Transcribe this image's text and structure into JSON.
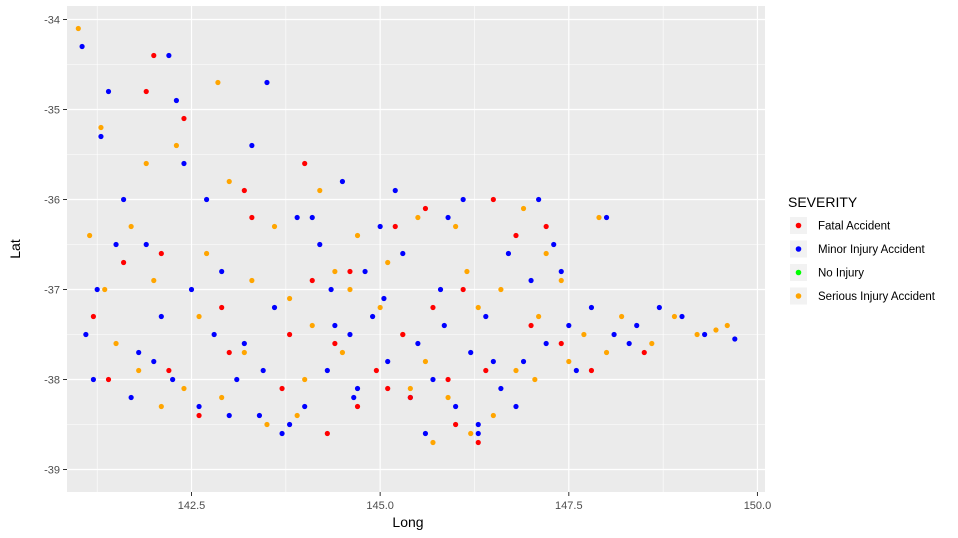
{
  "chart_data": {
    "type": "scatter",
    "title": "",
    "xlabel": "Long",
    "ylabel": "Lat",
    "xlim": [
      140.85,
      150.1
    ],
    "ylim": [
      -39.25,
      -33.85
    ],
    "x_ticks": [
      142.5,
      145.0,
      147.5,
      150.0
    ],
    "x_tick_labels": [
      "142.5",
      "145.0",
      "147.5",
      "150.0"
    ],
    "y_ticks": [
      -39,
      -38,
      -37,
      -36,
      -35,
      -34
    ],
    "y_tick_labels": [
      "-39",
      "-38",
      "-37",
      "-36",
      "-35",
      "-34"
    ],
    "grid": true,
    "legend": {
      "title": "SEVERITY",
      "position": "right",
      "entries": [
        {
          "label": "Fatal Accident",
          "color": "#FF0000"
        },
        {
          "label": "Minor Injury Accident",
          "color": "#0000FF"
        },
        {
          "label": "No Injury",
          "color": "#00FF00"
        },
        {
          "label": "Serious Injury Accident",
          "color": "#FFA500"
        }
      ]
    },
    "series": [
      {
        "name": "Fatal Accident",
        "color": "#FF0000",
        "x": [
          141.2,
          141.6,
          142.1,
          142.4,
          142.9,
          143.3,
          143.7,
          144.1,
          144.4,
          144.7,
          144.95,
          145.2,
          145.4,
          145.7,
          146.0,
          146.3,
          146.5,
          147.0,
          147.4,
          147.8,
          142.0,
          143.0,
          144.0,
          145.1,
          146.1,
          141.4,
          142.6,
          143.8,
          144.6,
          145.6,
          146.4,
          147.2,
          148.5,
          143.2,
          144.3,
          145.9,
          141.9,
          142.2,
          145.3,
          146.8
        ],
        "y": [
          -37.3,
          -36.7,
          -36.6,
          -35.1,
          -37.2,
          -36.2,
          -38.1,
          -36.9,
          -37.6,
          -38.3,
          -37.9,
          -36.3,
          -38.2,
          -37.2,
          -38.5,
          -38.7,
          -36.0,
          -37.4,
          -37.6,
          -37.9,
          -34.4,
          -37.7,
          -35.6,
          -38.1,
          -37.0,
          -38.0,
          -38.4,
          -37.5,
          -36.8,
          -36.1,
          -37.9,
          -36.3,
          -37.7,
          -35.9,
          -38.6,
          -38.0,
          -34.8,
          -37.9,
          -37.5,
          -36.4
        ]
      },
      {
        "name": "Minor Injury Accident",
        "color": "#0000FF",
        "x": [
          141.05,
          141.3,
          141.6,
          141.9,
          142.2,
          142.5,
          142.8,
          143.1,
          143.4,
          143.7,
          144.0,
          144.3,
          144.6,
          144.9,
          145.1,
          145.4,
          145.7,
          146.0,
          146.3,
          146.6,
          146.9,
          147.2,
          147.5,
          147.8,
          148.1,
          148.4,
          148.7,
          149.0,
          149.3,
          149.7,
          141.2,
          142.0,
          142.9,
          143.6,
          144.2,
          144.8,
          145.3,
          145.8,
          146.4,
          147.0,
          141.5,
          142.4,
          143.3,
          144.5,
          145.0,
          145.9,
          146.7,
          147.3,
          141.8,
          142.7,
          143.9,
          144.4,
          145.5,
          146.2,
          147.6,
          148.0,
          141.1,
          143.0,
          144.7,
          146.5,
          141.4,
          142.3,
          143.5,
          144.1,
          145.2,
          146.1,
          147.1,
          148.3,
          141.7,
          142.6,
          143.8,
          145.6,
          146.8,
          141.25,
          142.1,
          143.2,
          144.35,
          145.05,
          145.85,
          147.4,
          142.25,
          143.45,
          144.65,
          146.3
        ],
        "y": [
          -34.3,
          -35.3,
          -36.0,
          -36.5,
          -34.4,
          -37.0,
          -37.5,
          -38.0,
          -38.4,
          -38.6,
          -38.3,
          -37.9,
          -37.5,
          -37.3,
          -37.8,
          -38.2,
          -38.0,
          -38.3,
          -38.5,
          -38.1,
          -37.8,
          -37.6,
          -37.4,
          -37.2,
          -37.5,
          -37.4,
          -37.2,
          -37.3,
          -37.5,
          -37.55,
          -38.0,
          -37.8,
          -36.8,
          -37.2,
          -36.5,
          -36.8,
          -36.6,
          -37.0,
          -37.3,
          -36.9,
          -36.5,
          -35.6,
          -35.4,
          -35.8,
          -36.3,
          -36.2,
          -36.6,
          -36.5,
          -37.7,
          -36.0,
          -36.2,
          -37.4,
          -37.6,
          -37.7,
          -37.9,
          -36.2,
          -37.5,
          -38.4,
          -38.1,
          -37.8,
          -34.8,
          -34.9,
          -34.7,
          -36.2,
          -35.9,
          -36.0,
          -36.0,
          -37.6,
          -38.2,
          -38.3,
          -38.5,
          -38.6,
          -38.3,
          -37.0,
          -37.3,
          -37.6,
          -37.0,
          -37.1,
          -37.4,
          -36.8,
          -38.0,
          -37.9,
          -38.2,
          -38.6
        ]
      },
      {
        "name": "No Injury",
        "color": "#00FF00",
        "x": [],
        "y": []
      },
      {
        "name": "Serious Injury Accident",
        "color": "#FFA500",
        "x": [
          141.0,
          141.3,
          141.7,
          142.0,
          142.3,
          142.6,
          142.9,
          143.2,
          143.5,
          143.8,
          144.1,
          144.4,
          144.7,
          145.0,
          145.3,
          145.6,
          145.9,
          146.2,
          146.5,
          146.8,
          147.1,
          147.4,
          147.7,
          148.0,
          148.6,
          149.2,
          149.6,
          141.15,
          141.8,
          142.7,
          143.6,
          144.5,
          145.4,
          146.3,
          147.2,
          148.2,
          141.5,
          142.4,
          143.3,
          144.2,
          145.1,
          146.0,
          146.9,
          147.9,
          141.9,
          143.0,
          144.0,
          145.5,
          146.6,
          142.1,
          143.9,
          145.7,
          147.5,
          141.35,
          142.85,
          144.6,
          146.15,
          147.05,
          149.45,
          148.9
        ],
        "y": [
          -34.1,
          -35.2,
          -36.3,
          -36.9,
          -35.4,
          -37.3,
          -38.2,
          -37.7,
          -38.5,
          -37.1,
          -37.4,
          -36.8,
          -36.4,
          -37.2,
          -37.5,
          -37.8,
          -38.2,
          -38.6,
          -38.4,
          -37.9,
          -37.3,
          -36.9,
          -37.5,
          -37.7,
          -37.6,
          -37.5,
          -37.4,
          -36.4,
          -37.9,
          -36.6,
          -36.3,
          -37.7,
          -38.1,
          -37.2,
          -36.6,
          -37.3,
          -37.6,
          -38.1,
          -36.9,
          -35.9,
          -36.7,
          -36.3,
          -36.1,
          -36.2,
          -35.6,
          -35.8,
          -38.0,
          -36.2,
          -37.0,
          -38.3,
          -38.4,
          -38.7,
          -37.8,
          -37.0,
          -34.7,
          -37.0,
          -36.8,
          -38.0,
          -37.45,
          -37.3
        ]
      }
    ]
  }
}
